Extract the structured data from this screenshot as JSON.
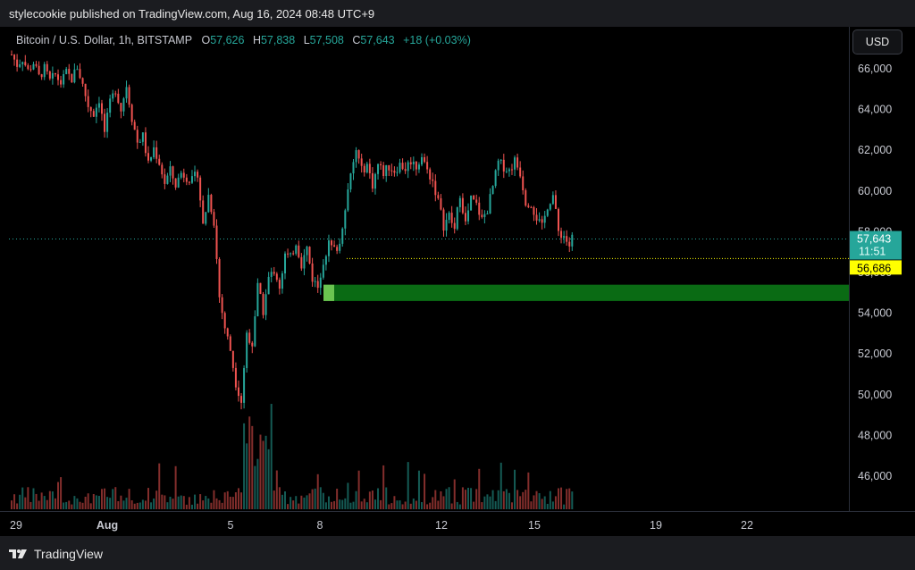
{
  "header": {
    "published": "stylecookie published on TradingView.com, Aug 16, 2024 08:48 UTC+9"
  },
  "legend": {
    "symbol": "Bitcoin / U.S. Dollar, 1h, BITSTAMP",
    "open_key": "O",
    "open": "57,626",
    "high_key": "H",
    "high": "57,838",
    "low_key": "L",
    "low": "57,508",
    "close_key": "C",
    "close": "57,643",
    "change": "+18 (+0.03%)"
  },
  "currency": "USD",
  "brand": "TradingView",
  "colors": {
    "up": "#26a69a",
    "down": "#ef5350",
    "zone": "#0a6b14",
    "support": "#ffff00",
    "price": "#26a69a"
  },
  "chart_data": {
    "type": "candlestick",
    "yaxis": {
      "ticks": [
        46000,
        48000,
        50000,
        52000,
        54000,
        56000,
        58000,
        60000,
        62000,
        64000,
        66000
      ],
      "tick_labels": [
        "46,000",
        "48,000",
        "50,000",
        "52,000",
        "54,000",
        "56,000",
        "58,000",
        "60,000",
        "62,000",
        "64,000",
        "66,000"
      ],
      "ylim": [
        44700,
        67500
      ]
    },
    "xaxis": {
      "ticks": [
        "29",
        "Aug",
        "5",
        "8",
        "12",
        "15",
        "19",
        "22"
      ]
    },
    "current_price": {
      "value": 57643,
      "label": "57,643",
      "countdown": "11:51"
    },
    "support_line": {
      "value": 56686,
      "label": "56,686"
    },
    "demand_zone": {
      "low": 54600,
      "high": 55400
    },
    "price_path": [
      [
        0,
        66700
      ],
      [
        2,
        66200
      ],
      [
        4,
        66500
      ],
      [
        6,
        65900
      ],
      [
        8,
        66300
      ],
      [
        10,
        65600
      ],
      [
        12,
        66000
      ],
      [
        14,
        65400
      ],
      [
        16,
        65700
      ],
      [
        18,
        65300
      ],
      [
        20,
        65800
      ],
      [
        22,
        65500
      ],
      [
        24,
        66100
      ],
      [
        26,
        65200
      ],
      [
        28,
        64200
      ],
      [
        30,
        63800
      ],
      [
        32,
        64500
      ],
      [
        34,
        62900
      ],
      [
        36,
        64300
      ],
      [
        38,
        65000
      ],
      [
        40,
        64000
      ],
      [
        42,
        65200
      ],
      [
        44,
        63600
      ],
      [
        46,
        62400
      ],
      [
        48,
        62700
      ],
      [
        50,
        61300
      ],
      [
        52,
        62100
      ],
      [
        54,
        61400
      ],
      [
        56,
        60400
      ],
      [
        58,
        61000
      ],
      [
        60,
        60300
      ],
      [
        62,
        60900
      ],
      [
        64,
        60700
      ],
      [
        66,
        60500
      ],
      [
        68,
        60900
      ],
      [
        70,
        58300
      ],
      [
        72,
        59800
      ],
      [
        74,
        58500
      ],
      [
        76,
        54800
      ],
      [
        78,
        53300
      ],
      [
        80,
        52200
      ],
      [
        82,
        50600
      ],
      [
        84,
        49700
      ],
      [
        86,
        53000
      ],
      [
        88,
        52500
      ],
      [
        90,
        55300
      ],
      [
        92,
        54100
      ],
      [
        94,
        55700
      ],
      [
        96,
        56100
      ],
      [
        98,
        55300
      ],
      [
        100,
        56900
      ],
      [
        102,
        56700
      ],
      [
        104,
        57500
      ],
      [
        106,
        56400
      ],
      [
        108,
        57200
      ],
      [
        110,
        55700
      ],
      [
        112,
        55300
      ],
      [
        114,
        56600
      ],
      [
        116,
        57400
      ],
      [
        118,
        57100
      ],
      [
        120,
        57400
      ],
      [
        122,
        59300
      ],
      [
        124,
        60700
      ],
      [
        126,
        62000
      ],
      [
        128,
        61000
      ],
      [
        130,
        61300
      ],
      [
        132,
        60300
      ],
      [
        134,
        61300
      ],
      [
        136,
        60900
      ],
      [
        138,
        61200
      ],
      [
        140,
        61000
      ],
      [
        142,
        61300
      ],
      [
        144,
        61100
      ],
      [
        146,
        61500
      ],
      [
        148,
        61200
      ],
      [
        150,
        61700
      ],
      [
        152,
        61000
      ],
      [
        154,
        60500
      ],
      [
        156,
        59500
      ],
      [
        158,
        58300
      ],
      [
        160,
        58800
      ],
      [
        162,
        58100
      ],
      [
        164,
        59900
      ],
      [
        166,
        58400
      ],
      [
        168,
        59600
      ],
      [
        170,
        59300
      ],
      [
        172,
        58600
      ],
      [
        174,
        59100
      ],
      [
        176,
        60200
      ],
      [
        178,
        61400
      ],
      [
        180,
        61200
      ],
      [
        182,
        61000
      ],
      [
        184,
        61500
      ],
      [
        186,
        60900
      ],
      [
        188,
        59500
      ],
      [
        190,
        59400
      ],
      [
        192,
        58700
      ],
      [
        194,
        58200
      ],
      [
        196,
        59300
      ],
      [
        198,
        59800
      ],
      [
        200,
        58000
      ],
      [
        202,
        57800
      ],
      [
        204,
        57300
      ],
      [
        205,
        57700
      ]
    ]
  }
}
